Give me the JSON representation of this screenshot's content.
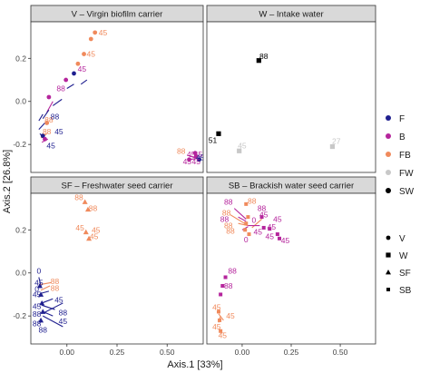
{
  "chart_data": {
    "type": "scatter",
    "xlabel": "Axis.1   [33%]",
    "ylabel": "Axis.2   [26.8%]",
    "xlim": [
      -0.18,
      0.68
    ],
    "ylim": [
      -0.33,
      0.37
    ],
    "xticks": [
      {
        "value": 0.0,
        "label": "0.00"
      },
      {
        "value": 0.25,
        "label": "0.25"
      },
      {
        "value": 0.5,
        "label": "0.50"
      }
    ],
    "yticks": [
      {
        "value": -0.2,
        "label": "-0.2"
      },
      {
        "value": 0.0,
        "label": "0.0"
      },
      {
        "value": 0.2,
        "label": "0.2"
      }
    ],
    "grid": false,
    "legend_position": "right",
    "colour_legend": [
      {
        "key": "F",
        "label": "F",
        "color": "#1f1f8f"
      },
      {
        "key": "B",
        "label": "B",
        "color": "#b5259c"
      },
      {
        "key": "FB",
        "label": "FB",
        "color": "#f08a5c"
      },
      {
        "key": "FW",
        "label": "FW",
        "color": "#c8c8c8"
      },
      {
        "key": "SW",
        "label": "SW",
        "color": "#000000"
      }
    ],
    "shape_legend": [
      {
        "key": "V",
        "label": "V",
        "shape": "circle"
      },
      {
        "key": "W",
        "label": "W",
        "shape": "square"
      },
      {
        "key": "SF",
        "label": "SF",
        "shape": "triangle"
      },
      {
        "key": "SB",
        "label": "SB",
        "shape": "small-square"
      }
    ],
    "panels": [
      {
        "title": "V – Virgin biofilm carrier",
        "shape": "circle",
        "points": [
          {
            "x": 0.14,
            "y": 0.32,
            "c": "FB"
          },
          {
            "x": 0.12,
            "y": 0.29,
            "c": "FB"
          },
          {
            "x": 0.085,
            "y": 0.22,
            "c": "FB"
          },
          {
            "x": 0.055,
            "y": 0.175,
            "c": "FB"
          },
          {
            "x": 0.035,
            "y": 0.13,
            "c": "F"
          },
          {
            "x": -0.005,
            "y": 0.1,
            "c": "B"
          },
          {
            "x": -0.09,
            "y": 0.02,
            "c": "B"
          },
          {
            "x": -0.1,
            "y": -0.1,
            "c": "FB"
          },
          {
            "x": -0.12,
            "y": -0.16,
            "c": "F"
          },
          {
            "x": -0.11,
            "y": -0.175,
            "c": "B"
          },
          {
            "x": 0.64,
            "y": -0.24,
            "c": "B"
          },
          {
            "x": 0.645,
            "y": -0.255,
            "c": "B"
          },
          {
            "x": 0.66,
            "y": -0.27,
            "c": "F"
          },
          {
            "x": 0.61,
            "y": -0.27,
            "c": "B"
          }
        ],
        "segments": [
          {
            "x1": 0.07,
            "y1": 0.08,
            "x2": 0.1,
            "y2": 0.1,
            "c": "F"
          },
          {
            "x1": 0.0,
            "y1": 0.06,
            "x2": 0.035,
            "y2": 0.08,
            "c": "F"
          },
          {
            "x1": -0.07,
            "y1": -0.02,
            "x2": -0.025,
            "y2": 0.01,
            "c": "F"
          },
          {
            "x1": -0.1,
            "y1": -0.05,
            "x2": -0.07,
            "y2": 0.0,
            "c": "B"
          },
          {
            "x1": -0.14,
            "y1": -0.09,
            "x2": -0.12,
            "y2": -0.06,
            "c": "F"
          },
          {
            "x1": -0.12,
            "y1": -0.08,
            "x2": -0.09,
            "y2": -0.04,
            "c": "F"
          },
          {
            "x1": -0.14,
            "y1": -0.13,
            "x2": -0.11,
            "y2": -0.1,
            "c": "F"
          },
          {
            "x1": -0.135,
            "y1": -0.15,
            "x2": -0.1,
            "y2": -0.18,
            "c": "F"
          },
          {
            "x1": -0.13,
            "y1": -0.17,
            "x2": -0.1,
            "y2": -0.15,
            "c": "FB"
          },
          {
            "x1": -0.125,
            "y1": -0.19,
            "x2": -0.095,
            "y2": -0.175,
            "c": "B"
          },
          {
            "x1": 0.6,
            "y1": -0.25,
            "x2": 0.65,
            "y2": -0.265,
            "c": "B"
          },
          {
            "x1": 0.61,
            "y1": -0.27,
            "x2": 0.65,
            "y2": -0.265,
            "c": "B"
          }
        ],
        "labels": [
          {
            "x": 0.18,
            "y": 0.32,
            "t": "45",
            "c": "FB"
          },
          {
            "x": 0.12,
            "y": 0.22,
            "t": "45",
            "c": "FB"
          },
          {
            "x": 0.075,
            "y": 0.15,
            "t": "45",
            "c": "B"
          },
          {
            "x": -0.03,
            "y": 0.06,
            "t": "88",
            "c": "B"
          },
          {
            "x": -0.09,
            "y": -0.085,
            "t": "88",
            "c": "FB"
          },
          {
            "x": -0.1,
            "y": -0.14,
            "t": "88",
            "c": "FB"
          },
          {
            "x": -0.06,
            "y": -0.07,
            "t": "88",
            "c": "F"
          },
          {
            "x": -0.04,
            "y": -0.14,
            "t": "45",
            "c": "F"
          },
          {
            "x": -0.08,
            "y": -0.205,
            "t": "45",
            "c": "F"
          },
          {
            "x": 0.57,
            "y": -0.23,
            "t": "88",
            "c": "FB"
          },
          {
            "x": 0.62,
            "y": -0.245,
            "t": "45",
            "c": "B"
          },
          {
            "x": 0.655,
            "y": -0.245,
            "t": "45",
            "c": "B"
          },
          {
            "x": 0.665,
            "y": -0.26,
            "t": "45",
            "c": "F"
          },
          {
            "x": 0.6,
            "y": -0.28,
            "t": "45",
            "c": "B"
          },
          {
            "x": 0.645,
            "y": -0.28,
            "t": "45",
            "c": "B"
          }
        ]
      },
      {
        "title": "W – Intake water",
        "shape": "square",
        "points": [
          {
            "x": 0.085,
            "y": 0.19,
            "c": "SW"
          },
          {
            "x": -0.12,
            "y": -0.15,
            "c": "SW"
          },
          {
            "x": -0.015,
            "y": -0.23,
            "c": "FW"
          },
          {
            "x": 0.46,
            "y": -0.21,
            "c": "FW"
          }
        ],
        "segments": [],
        "labels": [
          {
            "x": 0.11,
            "y": 0.21,
            "t": "88",
            "c": "SW"
          },
          {
            "x": -0.15,
            "y": -0.18,
            "t": "51",
            "c": "SW"
          },
          {
            "x": 0.0,
            "y": -0.205,
            "t": "45",
            "c": "FW"
          },
          {
            "x": 0.48,
            "y": -0.185,
            "t": "27",
            "c": "FW"
          }
        ]
      },
      {
        "title": "SF – Freshwater seed carrier",
        "shape": "triangle",
        "points": [
          {
            "x": 0.09,
            "y": 0.33,
            "c": "FB"
          },
          {
            "x": 0.105,
            "y": 0.295,
            "c": "FB"
          },
          {
            "x": 0.095,
            "y": 0.19,
            "c": "FB"
          },
          {
            "x": 0.11,
            "y": 0.16,
            "c": "FB"
          },
          {
            "x": -0.135,
            "y": -0.06,
            "c": "F"
          },
          {
            "x": -0.13,
            "y": -0.1,
            "c": "F"
          },
          {
            "x": -0.125,
            "y": -0.14,
            "c": "F"
          },
          {
            "x": -0.12,
            "y": -0.18,
            "c": "F"
          },
          {
            "x": -0.13,
            "y": -0.22,
            "c": "F"
          }
        ],
        "segments": [
          {
            "x1": -0.14,
            "y1": -0.02,
            "x2": -0.13,
            "y2": -0.06,
            "c": "F"
          },
          {
            "x1": -0.14,
            "y1": -0.055,
            "x2": -0.08,
            "y2": -0.045,
            "c": "FB"
          },
          {
            "x1": -0.13,
            "y1": -0.08,
            "x2": -0.085,
            "y2": -0.06,
            "c": "FB"
          },
          {
            "x1": -0.13,
            "y1": -0.095,
            "x2": -0.09,
            "y2": -0.085,
            "c": "F"
          },
          {
            "x1": -0.125,
            "y1": -0.14,
            "x2": -0.07,
            "y2": -0.12,
            "c": "F"
          },
          {
            "x1": -0.125,
            "y1": -0.15,
            "x2": -0.06,
            "y2": -0.17,
            "c": "F"
          },
          {
            "x1": -0.12,
            "y1": -0.18,
            "x2": -0.07,
            "y2": -0.2,
            "c": "F"
          },
          {
            "x1": -0.115,
            "y1": -0.185,
            "x2": -0.02,
            "y2": -0.14,
            "c": "F"
          },
          {
            "x1": -0.12,
            "y1": -0.2,
            "x2": -0.02,
            "y2": -0.25,
            "c": "F"
          }
        ],
        "labels": [
          {
            "x": 0.06,
            "y": 0.35,
            "t": "88",
            "c": "FB"
          },
          {
            "x": 0.13,
            "y": 0.3,
            "t": "88",
            "c": "FB"
          },
          {
            "x": 0.065,
            "y": 0.21,
            "t": "45",
            "c": "FB"
          },
          {
            "x": 0.145,
            "y": 0.2,
            "t": "45",
            "c": "FB"
          },
          {
            "x": 0.135,
            "y": 0.17,
            "t": "45",
            "c": "FB"
          },
          {
            "x": -0.14,
            "y": 0.01,
            "t": "0",
            "c": "F"
          },
          {
            "x": -0.06,
            "y": -0.04,
            "t": "88",
            "c": "FB"
          },
          {
            "x": -0.06,
            "y": -0.07,
            "t": "88",
            "c": "FB"
          },
          {
            "x": -0.14,
            "y": -0.045,
            "t": "45",
            "c": "F"
          },
          {
            "x": -0.15,
            "y": -0.075,
            "t": "0",
            "c": "F"
          },
          {
            "x": -0.15,
            "y": -0.1,
            "t": "45",
            "c": "F"
          },
          {
            "x": -0.04,
            "y": -0.125,
            "t": "45",
            "c": "F"
          },
          {
            "x": -0.15,
            "y": -0.155,
            "t": "45",
            "c": "F"
          },
          {
            "x": -0.15,
            "y": -0.19,
            "t": "88",
            "c": "F"
          },
          {
            "x": -0.02,
            "y": -0.185,
            "t": "88",
            "c": "F"
          },
          {
            "x": -0.15,
            "y": -0.235,
            "t": "88",
            "c": "F"
          },
          {
            "x": -0.02,
            "y": -0.225,
            "t": "45",
            "c": "F"
          },
          {
            "x": -0.12,
            "y": -0.265,
            "t": "88",
            "c": "F"
          }
        ]
      },
      {
        "title": "SB – Brackish water seed carrier",
        "shape": "small-square",
        "points": [
          {
            "x": 0.02,
            "y": 0.32,
            "c": "FB"
          },
          {
            "x": 0.03,
            "y": 0.26,
            "c": "FB"
          },
          {
            "x": 0.02,
            "y": 0.23,
            "c": "FB"
          },
          {
            "x": 0.015,
            "y": 0.2,
            "c": "FB"
          },
          {
            "x": 0.035,
            "y": 0.18,
            "c": "FB"
          },
          {
            "x": 0.1,
            "y": 0.26,
            "c": "B"
          },
          {
            "x": 0.11,
            "y": 0.21,
            "c": "B"
          },
          {
            "x": 0.14,
            "y": 0.205,
            "c": "B"
          },
          {
            "x": 0.18,
            "y": 0.18,
            "c": "B"
          },
          {
            "x": 0.19,
            "y": 0.16,
            "c": "B"
          },
          {
            "x": -0.085,
            "y": -0.02,
            "c": "B"
          },
          {
            "x": -0.1,
            "y": -0.06,
            "c": "B"
          },
          {
            "x": -0.11,
            "y": -0.1,
            "c": "B"
          },
          {
            "x": -0.12,
            "y": -0.18,
            "c": "FB"
          },
          {
            "x": -0.115,
            "y": -0.22,
            "c": "FB"
          },
          {
            "x": -0.11,
            "y": -0.27,
            "c": "FB"
          }
        ],
        "segments": [
          {
            "x1": -0.04,
            "y1": 0.3,
            "x2": 0.02,
            "y2": 0.25,
            "c": "B"
          },
          {
            "x1": -0.02,
            "y1": 0.26,
            "x2": 0.02,
            "y2": 0.24,
            "c": "B"
          },
          {
            "x1": -0.02,
            "y1": 0.23,
            "x2": 0.03,
            "y2": 0.22,
            "c": "FB"
          },
          {
            "x1": 0.0,
            "y1": 0.2,
            "x2": 0.03,
            "y2": 0.215,
            "c": "B"
          },
          {
            "x1": -0.06,
            "y1": 0.27,
            "x2": 0.03,
            "y2": 0.22,
            "c": "FB"
          },
          {
            "x1": 0.05,
            "y1": 0.21,
            "x2": 0.1,
            "y2": 0.25,
            "c": "FB"
          },
          {
            "x1": 0.03,
            "y1": 0.22,
            "x2": 0.09,
            "y2": 0.22,
            "c": "B"
          },
          {
            "x1": -0.12,
            "y1": -0.19,
            "x2": -0.095,
            "y2": -0.22,
            "c": "FB"
          },
          {
            "x1": -0.12,
            "y1": -0.23,
            "x2": -0.11,
            "y2": -0.2,
            "c": "FB"
          },
          {
            "x1": -0.12,
            "y1": -0.26,
            "x2": -0.1,
            "y2": -0.28,
            "c": "FB"
          }
        ],
        "labels": [
          {
            "x": -0.07,
            "y": 0.33,
            "t": "88",
            "c": "B"
          },
          {
            "x": 0.05,
            "y": 0.335,
            "t": "88",
            "c": "FB"
          },
          {
            "x": -0.08,
            "y": 0.28,
            "t": "88",
            "c": "FB"
          },
          {
            "x": 0.1,
            "y": 0.3,
            "t": "88",
            "c": "B"
          },
          {
            "x": -0.09,
            "y": 0.25,
            "t": "88",
            "c": "B"
          },
          {
            "x": 0.11,
            "y": 0.27,
            "t": "45",
            "c": "B"
          },
          {
            "x": 0.18,
            "y": 0.25,
            "t": "45",
            "c": "B"
          },
          {
            "x": -0.07,
            "y": 0.22,
            "t": "88",
            "c": "FB"
          },
          {
            "x": 0.06,
            "y": 0.245,
            "t": "0",
            "c": "B"
          },
          {
            "x": 0.15,
            "y": 0.215,
            "t": "45",
            "c": "B"
          },
          {
            "x": -0.06,
            "y": 0.195,
            "t": "88",
            "c": "FB"
          },
          {
            "x": 0.08,
            "y": 0.19,
            "t": "45",
            "c": "B"
          },
          {
            "x": 0.14,
            "y": 0.17,
            "t": "45",
            "c": "B"
          },
          {
            "x": 0.02,
            "y": 0.155,
            "t": "0",
            "c": "B"
          },
          {
            "x": 0.22,
            "y": 0.15,
            "t": "45",
            "c": "B"
          },
          {
            "x": -0.05,
            "y": 0.01,
            "t": "88",
            "c": "B"
          },
          {
            "x": -0.07,
            "y": -0.06,
            "t": "88",
            "c": "B"
          },
          {
            "x": -0.13,
            "y": -0.16,
            "t": "45",
            "c": "FB"
          },
          {
            "x": -0.06,
            "y": -0.2,
            "t": "45",
            "c": "FB"
          },
          {
            "x": -0.13,
            "y": -0.25,
            "t": "45",
            "c": "FB"
          },
          {
            "x": -0.1,
            "y": -0.29,
            "t": "45",
            "c": "FB"
          }
        ]
      }
    ]
  }
}
